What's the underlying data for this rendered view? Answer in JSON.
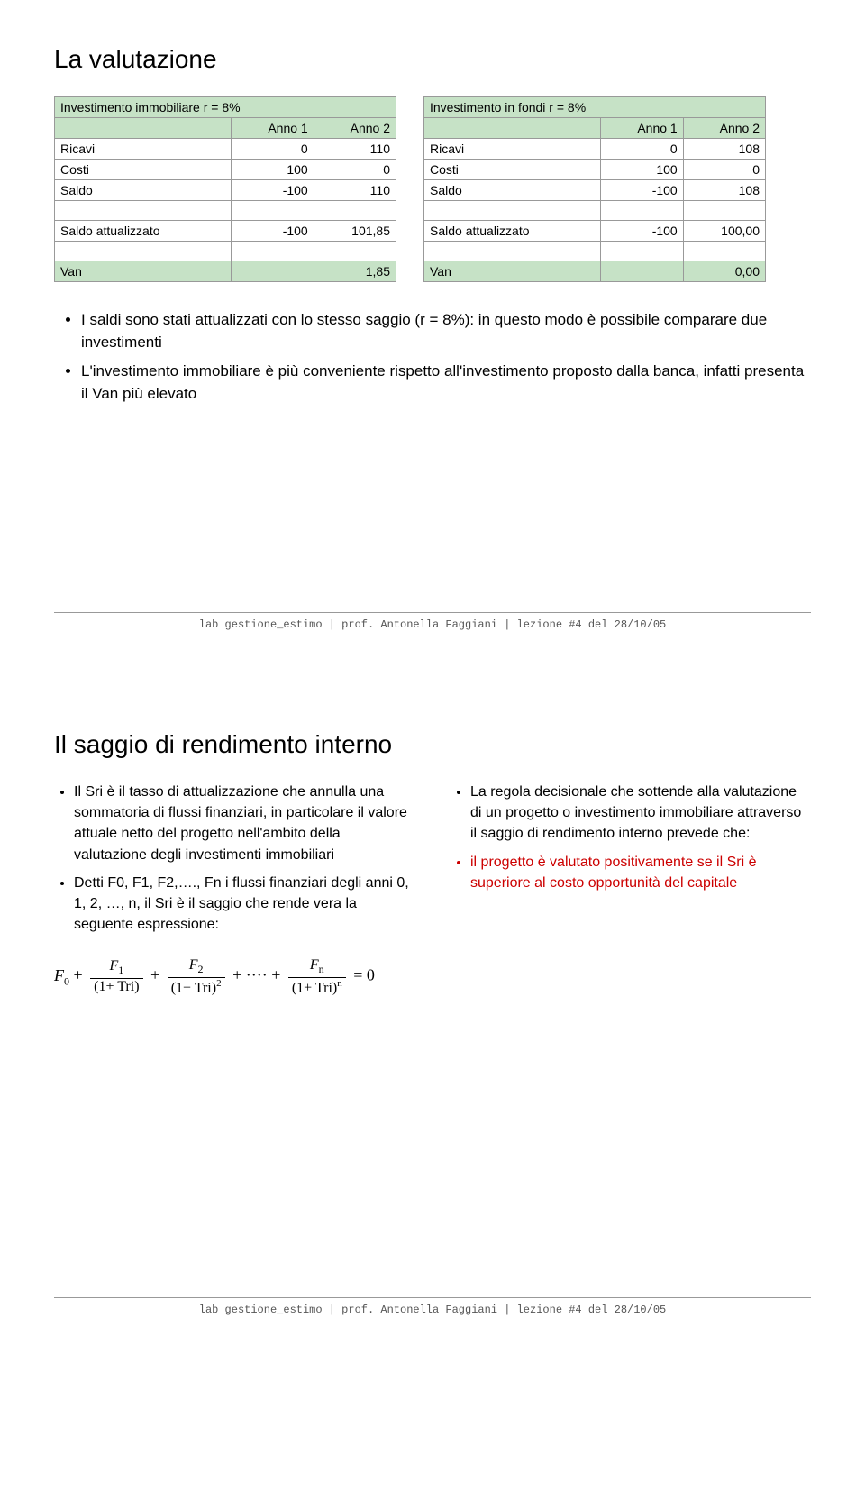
{
  "slide1": {
    "title": "La valutazione",
    "table_left": {
      "header_span": "Investimento immobiliare r = 8%",
      "col0": "",
      "col1": "Anno 1",
      "col2": "Anno 2",
      "rows": [
        {
          "label": "Ricavi",
          "a": "0",
          "b": "110"
        },
        {
          "label": "Costi",
          "a": "100",
          "b": "0"
        },
        {
          "label": "Saldo",
          "a": "-100",
          "b": "110"
        }
      ],
      "saldo_att_label": "Saldo attualizzato",
      "saldo_att_a": "-100",
      "saldo_att_b": "101,85",
      "van_label": "Van",
      "van_val": "1,85"
    },
    "table_right": {
      "header_span": "Investimento in fondi r = 8%",
      "col0": "",
      "col1": "Anno 1",
      "col2": "Anno 2",
      "rows": [
        {
          "label": "Ricavi",
          "a": "0",
          "b": "108"
        },
        {
          "label": "Costi",
          "a": "100",
          "b": "0"
        },
        {
          "label": "Saldo",
          "a": "-100",
          "b": "108"
        }
      ],
      "saldo_att_label": "Saldo attualizzato",
      "saldo_att_a": "-100",
      "saldo_att_b": "100,00",
      "van_label": "Van",
      "van_val": "0,00"
    },
    "bullets": [
      "I saldi sono stati attualizzati con lo stesso saggio (r = 8%): in questo modo è possibile comparare due investimenti",
      "L'investimento immobiliare è più conveniente rispetto all'investimento proposto dalla banca, infatti presenta il Van più elevato"
    ],
    "footer": "lab gestione_estimo | prof. Antonella Faggiani | lezione #4 del 28/10/05"
  },
  "slide2": {
    "title": "Il saggio di rendimento interno",
    "left_bullets": [
      "Il Sri è il tasso di attualizzazione che annulla una sommatoria di flussi finanziari, in particolare il valore attuale netto del progetto nell'ambito della valutazione degli investimenti immobiliari",
      "Detti F0, F1, F2,…., Fn i flussi finanziari degli anni 0, 1, 2, …, n, il Sri è il saggio che rende vera la seguente espressione:"
    ],
    "right_bullet_intro": "La regola decisionale che sottende alla valutazione di un progetto o investimento immobiliare attraverso il saggio di rendimento interno prevede che:",
    "right_bullet_red": "il progetto è valutato positivamente se il Sri è superiore al costo opportunità del capitale",
    "formula": {
      "f0": "F",
      "f0_sub": "0",
      "f1": "F",
      "f1_sub": "1",
      "d1": "(1+ Tri)",
      "f2": "F",
      "f2_sub": "2",
      "d2_base": "(1+ Tri)",
      "d2_exp": "2",
      "fn": "F",
      "fn_sub": "n",
      "dn_base": "(1+ Tri)",
      "dn_exp": "n",
      "eq": "= 0"
    },
    "footer": "lab gestione_estimo | prof. Antonella Faggiani | lezione #4 del 28/10/05"
  },
  "colors": {
    "header_bg": "#c6e2c6",
    "border": "#999999",
    "red": "#cc0000"
  }
}
